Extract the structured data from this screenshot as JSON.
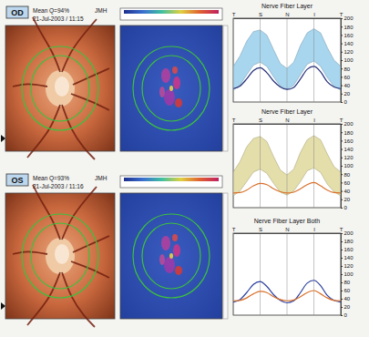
{
  "eyes": [
    {
      "label": "OD",
      "quality": "Mean Q=94%",
      "operator": "JMH",
      "datetime": "21-Jul-2003 / 11:15"
    },
    {
      "label": "OS",
      "quality": "Mean Q=93%",
      "operator": "JMH",
      "datetime": "21-Jul-2003 / 11:16"
    }
  ],
  "chart_data": [
    {
      "type": "line",
      "title": "Nerve Fiber Layer",
      "x": [
        0,
        16,
        32,
        48,
        64,
        80,
        96,
        112,
        128,
        144,
        160,
        176,
        192,
        208,
        224,
        240,
        256
      ],
      "xlim": [
        0,
        256
      ],
      "xticks": [
        {
          "value": 0,
          "label": "T"
        },
        {
          "value": 64,
          "label": "S"
        },
        {
          "value": 128,
          "label": "N"
        },
        {
          "value": 192,
          "label": "I"
        },
        {
          "value": 256,
          "label": "T"
        }
      ],
      "ylim": [
        0,
        200
      ],
      "yticks": [
        0,
        20,
        40,
        60,
        80,
        100,
        120,
        140,
        160,
        180,
        200
      ],
      "grid": true,
      "band": {
        "color": "#a8d6ef",
        "upper": [
          85,
          110,
          145,
          168,
          172,
          160,
          125,
          92,
          80,
          95,
          135,
          165,
          175,
          165,
          130,
          100,
          85
        ],
        "lower": [
          28,
          40,
          65,
          88,
          95,
          85,
          60,
          38,
          30,
          40,
          65,
          90,
          98,
          85,
          58,
          38,
          28
        ]
      },
      "series": [
        {
          "color": "#26307a",
          "values": [
            32,
            38,
            55,
            75,
            82,
            70,
            50,
            36,
            30,
            35,
            55,
            78,
            85,
            72,
            48,
            36,
            32
          ]
        }
      ]
    },
    {
      "type": "line",
      "title": "Nerve Fiber Layer",
      "x": [
        0,
        16,
        32,
        48,
        64,
        80,
        96,
        112,
        128,
        144,
        160,
        176,
        192,
        208,
        224,
        240,
        256
      ],
      "xlim": [
        0,
        256
      ],
      "xticks": [
        {
          "value": 0,
          "label": "T"
        },
        {
          "value": 64,
          "label": "S"
        },
        {
          "value": 128,
          "label": "N"
        },
        {
          "value": 192,
          "label": "I"
        },
        {
          "value": 256,
          "label": "T"
        }
      ],
      "ylim": [
        0,
        200
      ],
      "yticks": [
        0,
        20,
        40,
        60,
        80,
        100,
        120,
        140,
        160,
        180,
        200
      ],
      "grid": true,
      "band": {
        "color": "#e4deaa",
        "upper": [
          85,
          110,
          145,
          165,
          170,
          158,
          122,
          90,
          78,
          92,
          132,
          162,
          172,
          162,
          128,
          98,
          85
        ],
        "lower": [
          28,
          40,
          62,
          85,
          92,
          82,
          58,
          37,
          30,
          40,
          62,
          88,
          95,
          84,
          56,
          38,
          28
        ]
      },
      "series": [
        {
          "color": "#d9702a",
          "values": [
            35,
            36,
            42,
            52,
            58,
            55,
            45,
            38,
            35,
            37,
            45,
            55,
            60,
            52,
            42,
            36,
            35
          ]
        }
      ]
    },
    {
      "type": "line",
      "title": "Nerve Fiber Layer Both",
      "x": [
        0,
        16,
        32,
        48,
        64,
        80,
        96,
        112,
        128,
        144,
        160,
        176,
        192,
        208,
        224,
        240,
        256
      ],
      "xlim": [
        0,
        256
      ],
      "xticks": [
        {
          "value": 0,
          "label": "T"
        },
        {
          "value": 64,
          "label": "S"
        },
        {
          "value": 128,
          "label": "N"
        },
        {
          "value": 192,
          "label": "I"
        },
        {
          "value": 256,
          "label": "T"
        }
      ],
      "ylim": [
        0,
        200
      ],
      "yticks": [
        0,
        20,
        40,
        60,
        80,
        100,
        120,
        140,
        160,
        180,
        200
      ],
      "grid": true,
      "series": [
        {
          "color": "#2b3f9e",
          "values": [
            32,
            38,
            55,
            75,
            82,
            70,
            50,
            36,
            30,
            35,
            55,
            78,
            85,
            72,
            48,
            36,
            32
          ]
        },
        {
          "color": "#d9702a",
          "values": [
            35,
            36,
            42,
            52,
            58,
            55,
            45,
            38,
            35,
            37,
            45,
            55,
            60,
            52,
            42,
            36,
            35
          ]
        }
      ]
    }
  ]
}
